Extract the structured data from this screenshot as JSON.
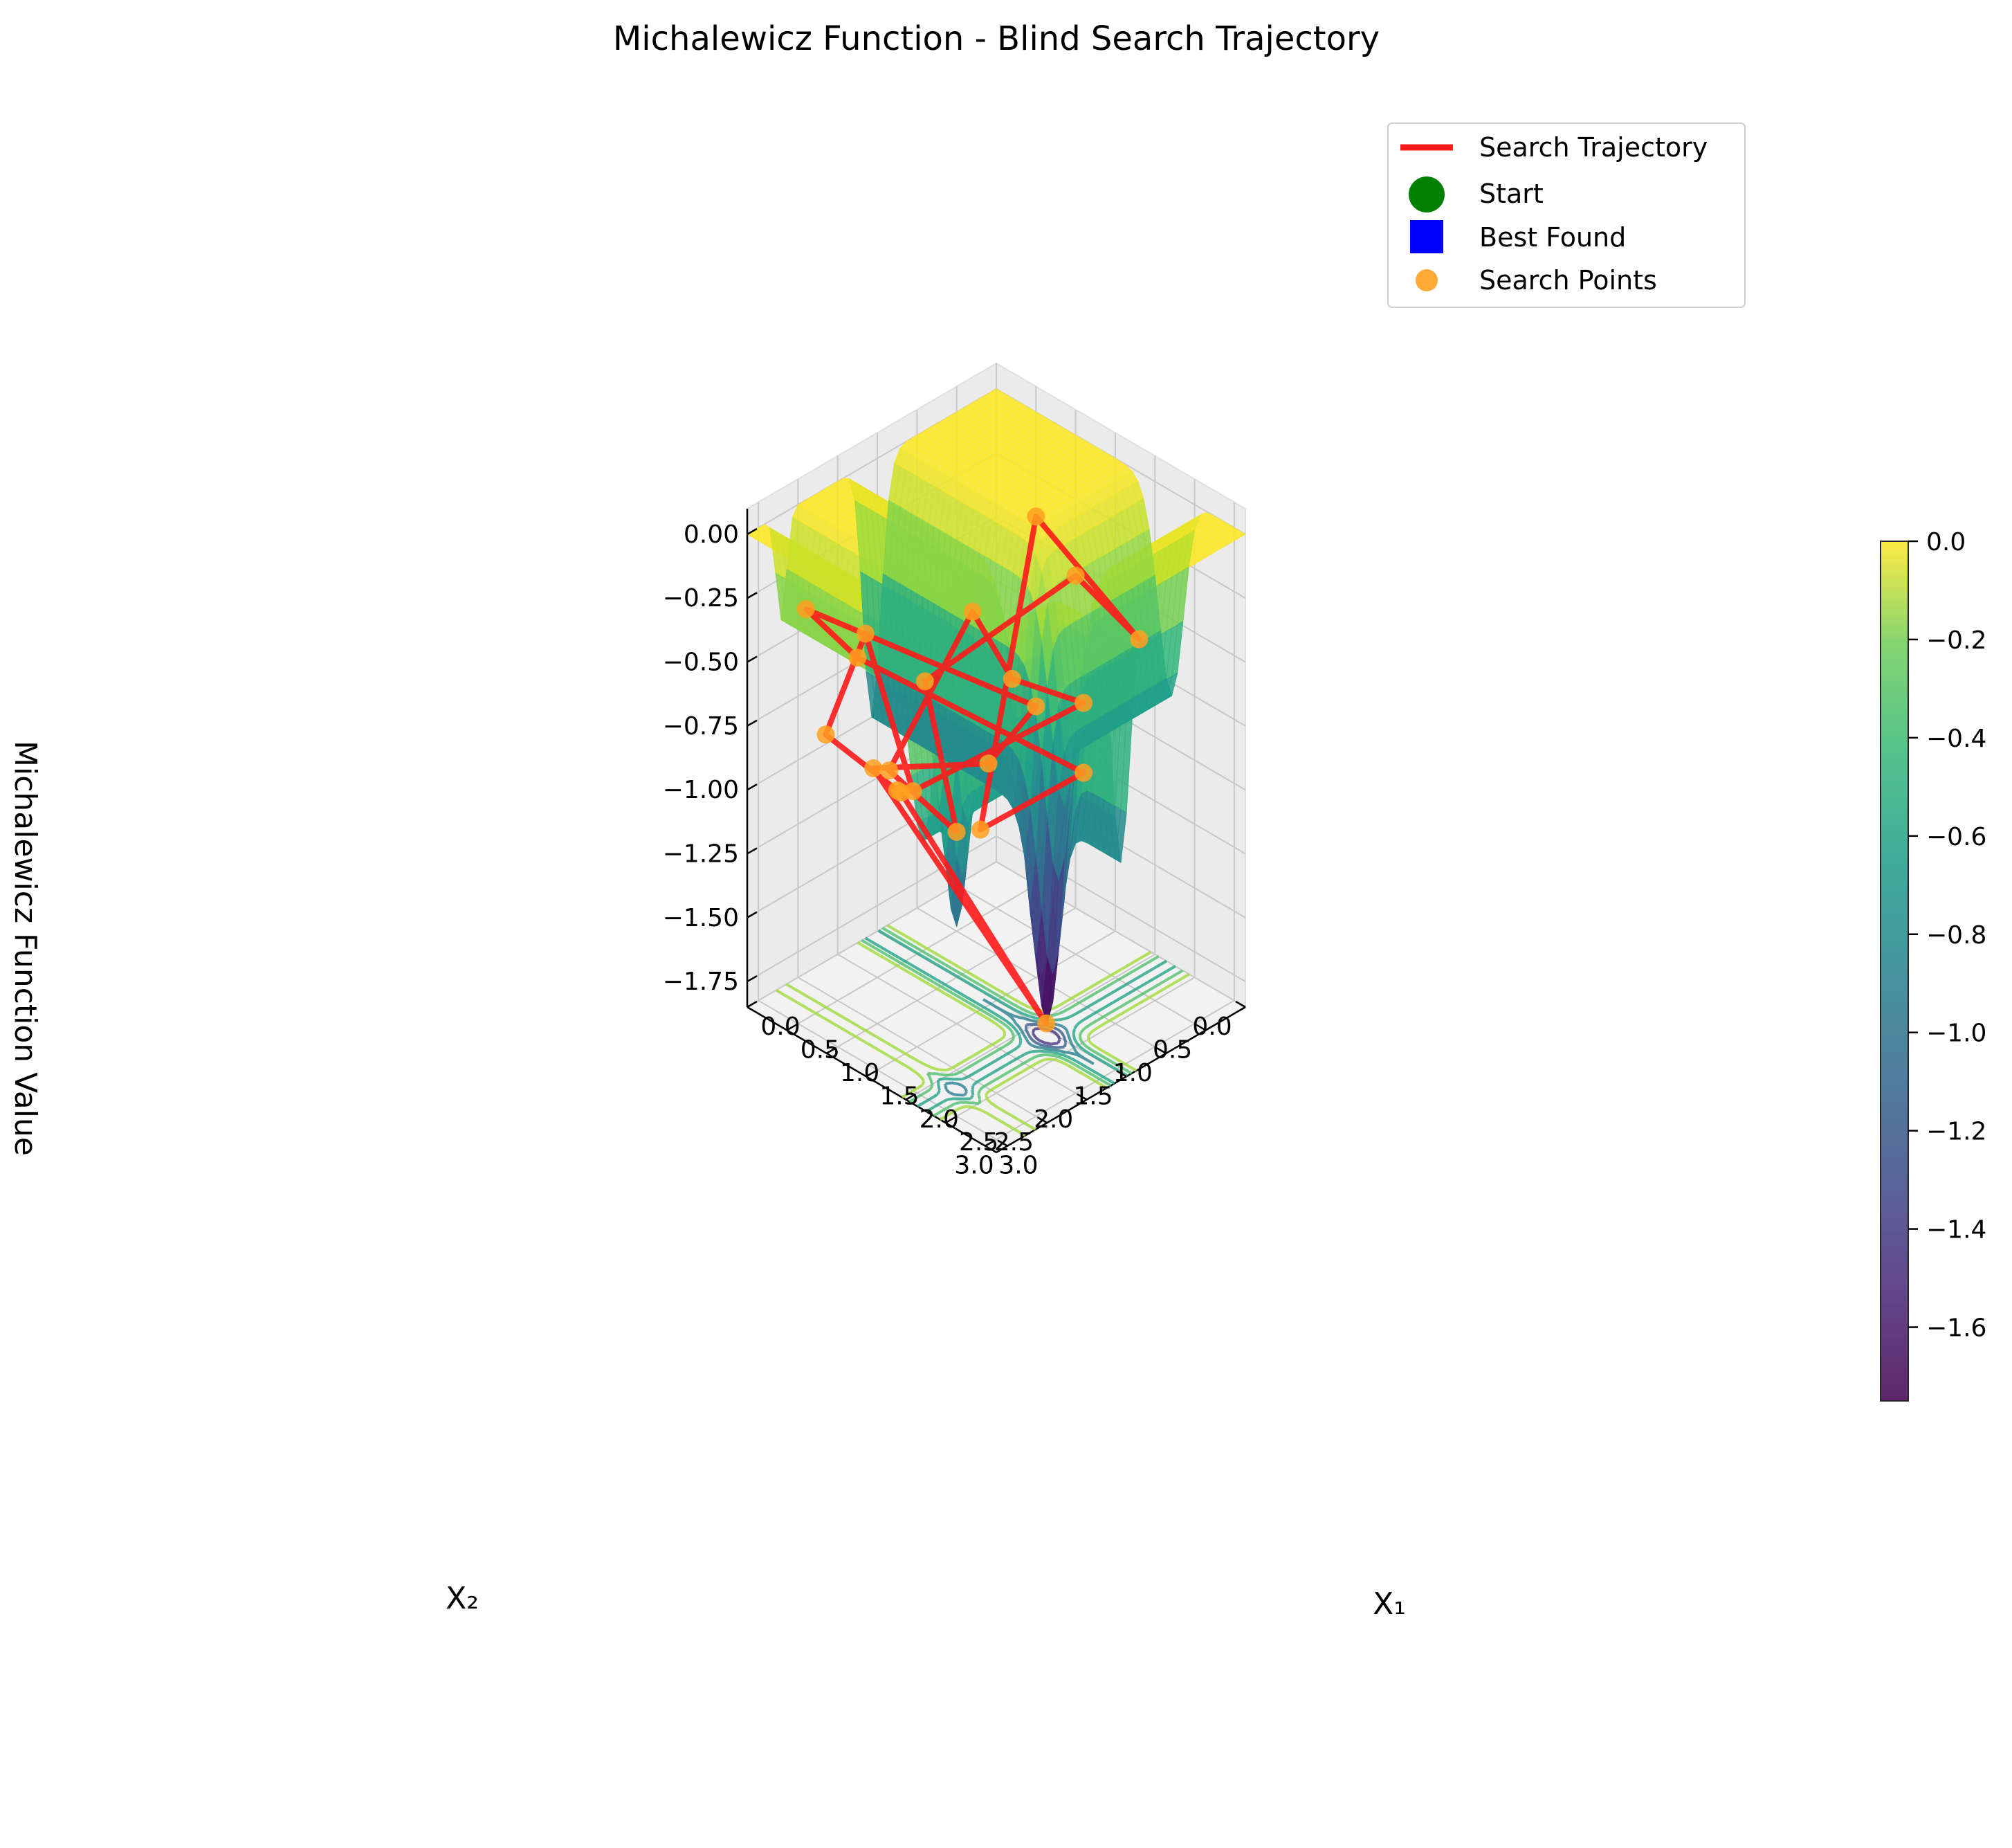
{
  "chart_data": {
    "type": "surface3d",
    "title": "Michalewicz Function - Blind Search Trajectory",
    "xlabel": "X₁",
    "ylabel": "X₂",
    "zlabel": "Michalewicz Function Value",
    "x_ticks": [
      "0.0",
      "0.5",
      "1.0",
      "1.5",
      "2.0",
      "2.5",
      "3.0"
    ],
    "y_ticks": [
      "0.0",
      "0.5",
      "1.0",
      "1.5",
      "2.0",
      "2.5",
      "3.0"
    ],
    "z_ticks": [
      "−1.75",
      "−1.50",
      "−1.25",
      "−1.00",
      "−0.75",
      "−0.50",
      "−0.25",
      "0.00"
    ],
    "xlim": [
      0,
      3.14
    ],
    "ylim": [
      0,
      3.14
    ],
    "zlim": [
      -1.85,
      0.1
    ],
    "colorbar": {
      "ticks": [
        "−1.6",
        "−1.4",
        "−1.2",
        "−1.0",
        "−0.8",
        "−0.6",
        "−0.4",
        "−0.2",
        "0.0"
      ],
      "range": [
        -1.75,
        0.0
      ],
      "colormap": "viridis"
    },
    "legend": {
      "placement": "top-right",
      "entries": [
        "Search Trajectory",
        "Start",
        "Best Found",
        "Search Points"
      ]
    },
    "colors": {
      "trajectory": "#ff1a1a",
      "start": "#008000",
      "best": "#0000ff",
      "points": "#ffa020"
    },
    "function": {
      "name": "Michalewicz",
      "m": 10,
      "global_min_approx": [
        2.2,
        1.57,
        -1.8
      ]
    },
    "series": [
      {
        "name": "Search Points",
        "x": [
          0.95,
          0.45,
          0.3,
          1.75,
          2.7,
          1.3,
          0.6,
          1.1,
          2.05,
          0.5,
          1.55,
          2.5,
          0.8,
          1.9,
          2.35,
          1.2,
          0.35,
          2.85,
          1.65,
          0.7,
          2.2,
          1.0
        ],
        "y": [
          2.2,
          2.6,
          1.95,
          2.8,
          1.6,
          1.1,
          0.9,
          2.45,
          2.55,
          1.4,
          0.55,
          0.7,
          0.3,
          2.1,
          1.25,
          2.95,
          2.75,
          2.35,
          1.75,
          2.25,
          1.57,
          2.2
        ],
        "z": [
          -1.0,
          -0.8,
          -0.55,
          -0.75,
          -0.45,
          -0.7,
          -0.6,
          -0.85,
          -0.9,
          -0.8,
          -0.35,
          -0.4,
          -0.3,
          -1.0,
          -0.85,
          -0.3,
          -0.3,
          -0.3,
          -0.85,
          -0.95,
          -1.8,
          -1.0
        ]
      }
    ]
  }
}
